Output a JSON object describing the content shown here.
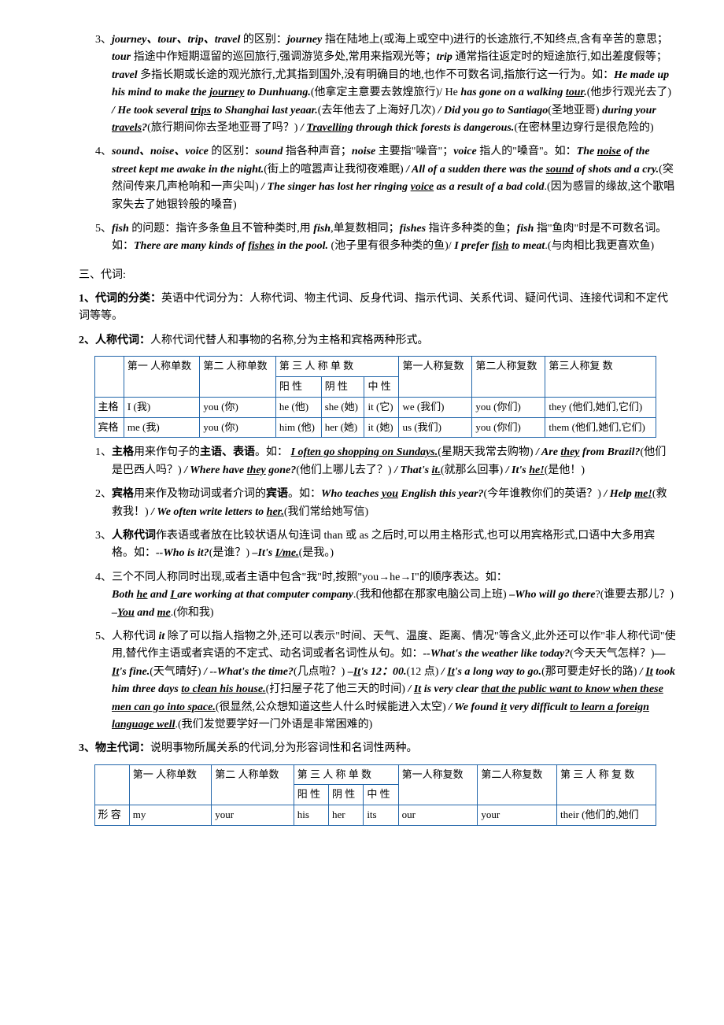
{
  "para3": {
    "num": "3、",
    "lead": "journey、tour、trip、travel",
    "mid1": " 的区别：",
    "journey": "journey",
    "journey_def": " 指在陆地上(或海上或空中)进行的长途旅行,不知终点,含有辛苦的意思；",
    "tour": "tour",
    "tour_def": " 指途中作短期逗留的巡回旅行,强调游览多处,常用来指观光等；",
    "trip": "trip",
    "trip_def": " 通常指往返定时的短途旅行,如出差度假等；",
    "travel": "travel",
    "travel_def": " 多指长期或长途的观光旅行,尤其指到国外,没有明确目的地,也作不可数名词,指旅行这一行为。如：",
    "ex1": "He made up his mind to make the ",
    "ex1u": "journey",
    "ex1b": " to Dunhuang.",
    "ex1cn": "(他拿定主意要去敦煌旅行)/ He ",
    "ex2": "has gone on a walking ",
    "ex2u": "tour",
    "ex2b": ".",
    "ex2cn": "(他步行观光去了) ",
    "ex3a": "/ He took several ",
    "ex3u": "trips",
    "ex3b": " to Shanghai last yeaar.",
    "ex3cn": "(去年他去了上海好几次) ",
    "ex4a": "/ Did you go to Santiago",
    "ex4cn1": "(圣地亚哥) ",
    "ex4b": "during your ",
    "ex4u": "travels",
    "ex4c": "?",
    "ex4cn2": "(旅行期间你去圣地亚哥了吗？) ",
    "ex5a": "/ ",
    "ex5u": "Travelling",
    "ex5b": " through thick forests is dangerous.",
    "ex5cn": "(在密林里边穿行是很危险的)"
  },
  "para4": {
    "num": "4、",
    "lead": "sound、noise、voice",
    "mid": " 的区别：",
    "sound": "sound",
    "sound_def": " 指各种声音；",
    "noise": "noise",
    "noise_def": " 主要指\"噪音\"；",
    "voice": "voice",
    "voice_def": " 指人的\"嗓音\"。如：",
    "ex1a": "The ",
    "ex1u": "noise",
    "ex1b": " of the street kept me awake in the night.",
    "ex1cn": "(街上的喧嚣声让我彻夜难眠) ",
    "ex2a": "/ All of a sudden there was the ",
    "ex2u": "sound",
    "ex2b": " of shots and a cry.",
    "ex2cn": "(突然间传来几声枪响和一声尖叫) ",
    "ex3a": "/ The singer has lost her ringing ",
    "ex3u": "voice",
    "ex3b": " as a result of a bad cold",
    "ex3cn": ".(因为感冒的缘故,这个歌唱家失去了她银铃般的嗓音)"
  },
  "para5": {
    "num": "5、",
    "lead": "fish",
    "mid": " 的问题：指许多条鱼且不管种类时,用 ",
    "fish1": "fish",
    "mid2": ",单复数相同；",
    "fishes": "fishes",
    "fishes_def": " 指许多种类的鱼；",
    "fish2": "fish",
    "fish2_def": " 指\"鱼肉\"时是不可数名词。如：",
    "ex1a": "There are many kinds of ",
    "ex1u": "fishes",
    "ex1b": " in the pool.",
    "ex1cn": " (池子里有很多种类的鱼)/ ",
    "ex2a": "I prefer ",
    "ex2u": "fish",
    "ex2b": " to meat",
    "ex2cn": ".(与肉相比我更喜欢鱼)"
  },
  "section3": {
    "title": "三、代词:"
  },
  "pron1": {
    "num": "1、",
    "title": "代词的分类：",
    "body": "英语中代词分为：人称代词、物主代词、反身代词、指示代词、关系代词、疑问代词、连接代词和不定代词等等。"
  },
  "pron2": {
    "num": "2、",
    "title": "人称代词：",
    "body": "人称代词代替人和事物的名称,分为主格和宾格两种形式。"
  },
  "tbl1": {
    "h1": "第一 人称单数",
    "h2": "第二 人称单数",
    "h3": "第 三 人 称 单      数",
    "h3a": "阳  性",
    "h3b": "阴  性",
    "h3c": "中  性",
    "h4": "第一人称复数",
    "h5": "第二人称复数",
    "h6": "第三人称复 数",
    "r1c0": "主格",
    "r1c1": "I (我)",
    "r1c2": "you (你)",
    "r1c3": "he (他)",
    "r1c4": "she (她)",
    "r1c5": "it (它)",
    "r1c6": "we (我们)",
    "r1c7": "you (你们)",
    "r1c8": "they (他们,她们,它们)",
    "r2c0": "宾格",
    "r2c1": "me (我)",
    "r2c2": "you (你)",
    "r2c3": "him (他)",
    "r2c4": "her (她)",
    "r2c5": "it (她)",
    "r2c6": "us (我们)",
    "r2c7": "you (你们)",
    "r2c8": "them (他们,她们,它们)"
  },
  "sub1": {
    "num": "1、",
    "t1": "主格",
    "t2": "用来作句子的",
    "t3": "主语、表语",
    "t4": "。如：  ",
    "ex1u": "I often go shopping on Sundays.",
    "ex1cn": "(星期天我常去购物) ",
    "ex2a": "/ Are ",
    "ex2u": "they",
    "ex2b": " from Brazil?",
    "ex2cn": "(他们是巴西人吗？) ",
    "ex3a": "/ Where have ",
    "ex3u": "they",
    "ex3b": " gone?",
    "ex3cn": "(他们上哪儿去了？) ",
    "ex4a": "/ That's ",
    "ex4u": "it.",
    "ex4cn": "(就那么回事) ",
    "ex5a": "/ It's ",
    "ex5u": "he!",
    "ex5cn": "(是他！)"
  },
  "sub2": {
    "num": "2、",
    "t1": "宾格",
    "t2": "用来作及物动词或者介词的",
    "t3": "宾语",
    "t4": "。如：",
    "ex1a": "Who teaches ",
    "ex1u": "you",
    "ex1b": " English this year?",
    "ex1cn": "(今年谁教你们的英语？) ",
    "ex2a": "/ Help ",
    "ex2u": "me!",
    "ex2cn": "(救救我！) ",
    "ex3a": "/ We often write letters   to   ",
    "ex3u": "her.",
    "ex3cn": "(我们常给她写信)"
  },
  "sub3": {
    "num": "3、",
    "t1": "人称代词",
    "t2": "作表语或者放在比较状语从句连词 than 或 as 之后时,可以用主格形式,也可以用宾格形式,口语中大多用宾格。如：",
    "ex1a": "--Who is it?",
    "ex1cn": "(是谁？) ",
    "ex2a": "–It's ",
    "ex2u": "I/me.",
    "ex2cn": "(是我。)"
  },
  "sub4": {
    "num": "4、",
    "t1": "三个不同人称同时出现,或者主语中包含\"我\"时,按照\"you→he→I\"的顺序表达。如：",
    "ex1a": "Both ",
    "ex1u1": "he",
    "ex1b": " and ",
    "ex1u2": "I ",
    "ex1c": "are working at that computer company",
    "ex1cn": ".(我和他都在那家电脑公司上班)     ",
    "ex2a": "–Who will go there",
    "ex2cn1": "?(谁要去那儿？) ",
    "ex2b": "–",
    "ex2u": "You",
    "ex2c": " and ",
    "ex2u2": "me",
    "ex2cn2": ".(你和我)"
  },
  "sub5": {
    "num": "5、",
    "t1": "人称代词 ",
    "t1b": "it",
    "t2": " 除了可以指人指物之外,还可以表示\"时间、天气、温度、距离、情况\"等含义,此外还可以作\"非人称代词\"使用,替代作主语或者宾语的不定式、动名词或者名词性从句。如：",
    "ex1a": "--What's the weather like today?",
    "ex1cn": "(今天天气怎样？)",
    "ex1b": "—",
    "ex1u": "It",
    "ex1c": "'s fine.",
    "ex1cn2": "(天气晴好) ",
    "ex2a": "/ --What's the time?",
    "ex2cn": "(几点啦？) ",
    "ex3a": "–",
    "ex3u": "It",
    "ex3b": "'s 12：00.",
    "ex3cn": "(12 点) ",
    "ex4a": "/ ",
    "ex4u": "It",
    "ex4b": "'s a long way to go.",
    "ex4cn": "(那可要走好长的路) ",
    "ex5a": "/ ",
    "ex5u": "It",
    "ex5b": " took him three days ",
    "ex5u2": "to clean his house.",
    "ex5cn": "(打扫屋子花了他三天的时间) ",
    "ex6a": "/ ",
    "ex6u": "It",
    "ex6b": " is very clear ",
    "ex6u2": "that the public want to know when these men can go into space.",
    "ex6cn": "(很显然,公众想知道这些人什么时候能进入太空) ",
    "ex7a": "/ We found ",
    "ex7u": "it",
    "ex7b": " very difficult ",
    "ex7u2": "to learn a foreign language well",
    "ex7cn": ".(我们发觉要学好一门外语是非常困难的)"
  },
  "pron3": {
    "num": "3、",
    "title": "物主代词：",
    "body": "说明事物所属关系的代词,分为形容词性和名词性两种。"
  },
  "tbl2": {
    "h1": "第一 人称单数",
    "h2": "第二 人称单数",
    "h3": "第 三 人 称 单      数",
    "h3a": "阳  性",
    "h3b": "阴  性",
    "h3c": "中  性",
    "h4": "第一人称复数",
    "h5": "第二人称复数",
    "h6": "第 三 人 称 复      数",
    "r1c0": "形 容",
    "r1c1": "my",
    "r1c2": "your",
    "r1c3": "his",
    "r1c4": "her",
    "r1c5": "its",
    "r1c6": "our",
    "r1c7": "your",
    "r1c8": "their (他们的,她们"
  }
}
